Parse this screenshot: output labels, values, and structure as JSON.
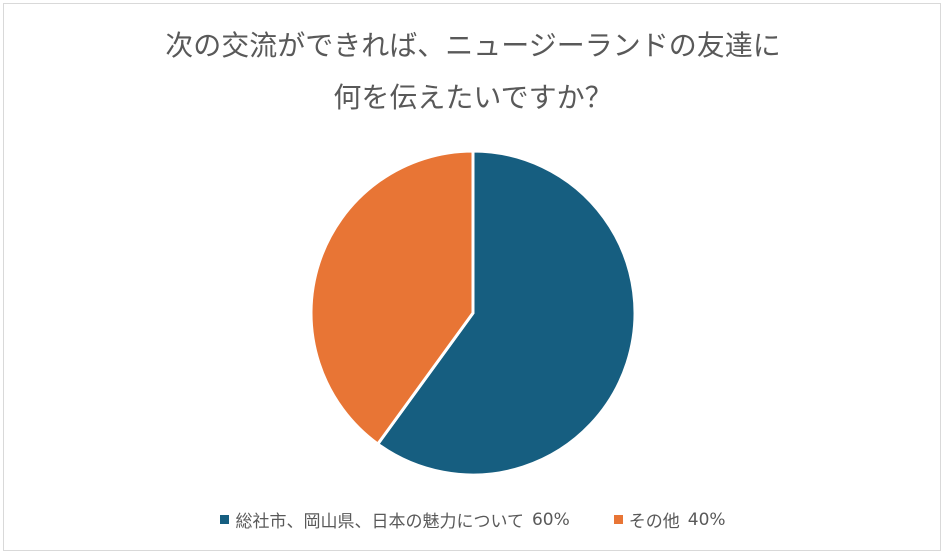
{
  "chart_data": {
    "type": "pie",
    "title_lines": [
      "次の交流ができれば、ニュージーランドの友達に",
      "何を伝えたいですか？"
    ],
    "slices": [
      {
        "label": "総社市、岡山県、日本の魅力について",
        "value": 60,
        "value_label": "60%",
        "color": "#165e80"
      },
      {
        "label": "その他",
        "value": 40,
        "value_label": "40%",
        "color": "#e87535"
      }
    ],
    "legend_position": "bottom",
    "start_angle": "12 o'clock",
    "direction": "clockwise"
  }
}
